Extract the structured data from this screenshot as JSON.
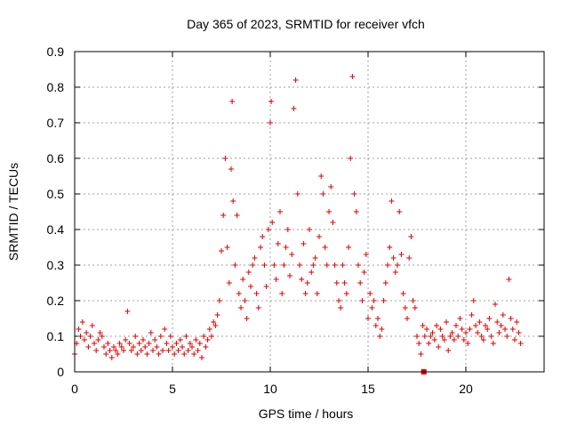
{
  "chart_data": {
    "type": "scatter",
    "title": "Day 365 of 2023, SRMTID for receiver vfch",
    "xlabel": "GPS time / hours",
    "ylabel": "SRMTID / TECUs",
    "xlim": [
      0,
      24
    ],
    "ylim": [
      0,
      0.9
    ],
    "xticks": [
      0,
      5,
      10,
      15,
      20
    ],
    "xtick_labels": [
      "0",
      "5",
      "10",
      "15",
      "20"
    ],
    "yticks": [
      0,
      0.1,
      0.2,
      0.3,
      0.4,
      0.5,
      0.6,
      0.7,
      0.8,
      0.9
    ],
    "ytick_labels": [
      "0",
      "0.1",
      "0.2",
      "0.3",
      "0.4",
      "0.5",
      "0.6",
      "0.7",
      "0.8",
      "0.9"
    ],
    "grid": true,
    "marker": "plus",
    "color": "#e00000",
    "special_marker": {
      "shape": "square",
      "x": 17.85,
      "y": 0.0
    },
    "series": [
      {
        "name": "SRMTID",
        "x": [
          0.0,
          0.1,
          0.2,
          0.3,
          0.4,
          0.5,
          0.6,
          0.7,
          0.8,
          0.9,
          1.0,
          1.1,
          1.2,
          1.3,
          1.4,
          1.5,
          1.6,
          1.7,
          1.8,
          1.9,
          2.0,
          2.1,
          2.2,
          2.3,
          2.4,
          2.5,
          2.6,
          2.7,
          2.8,
          2.9,
          3.0,
          3.1,
          3.2,
          3.3,
          3.4,
          3.5,
          3.6,
          3.7,
          3.8,
          3.9,
          4.0,
          4.1,
          4.2,
          4.3,
          4.4,
          4.5,
          4.6,
          4.7,
          4.8,
          4.9,
          5.0,
          5.1,
          5.2,
          5.3,
          5.4,
          5.5,
          5.6,
          5.7,
          5.8,
          5.9,
          6.0,
          6.1,
          6.2,
          6.3,
          6.4,
          6.5,
          6.6,
          6.7,
          6.8,
          6.9,
          7.0,
          7.1,
          7.2,
          7.3,
          7.4,
          7.5,
          7.6,
          7.7,
          7.8,
          7.9,
          8.0,
          8.05,
          8.1,
          8.2,
          8.3,
          8.4,
          8.5,
          8.6,
          8.7,
          8.8,
          8.9,
          9.0,
          9.1,
          9.2,
          9.3,
          9.4,
          9.5,
          9.6,
          9.7,
          9.8,
          9.9,
          10.0,
          10.05,
          10.1,
          10.2,
          10.3,
          10.4,
          10.5,
          10.6,
          10.7,
          10.8,
          10.9,
          11.0,
          11.1,
          11.2,
          11.3,
          11.4,
          11.5,
          11.6,
          11.7,
          11.8,
          11.9,
          12.0,
          12.1,
          12.2,
          12.3,
          12.4,
          12.5,
          12.6,
          12.7,
          12.8,
          12.9,
          13.0,
          13.1,
          13.2,
          13.3,
          13.4,
          13.5,
          13.6,
          13.7,
          13.8,
          13.9,
          14.0,
          14.1,
          14.2,
          14.3,
          14.4,
          14.5,
          14.6,
          14.7,
          14.8,
          14.9,
          15.0,
          15.1,
          15.2,
          15.3,
          15.4,
          15.5,
          15.6,
          15.7,
          15.8,
          15.9,
          16.0,
          16.1,
          16.2,
          16.3,
          16.4,
          16.5,
          16.6,
          16.7,
          16.8,
          16.9,
          17.0,
          17.1,
          17.2,
          17.3,
          17.4,
          17.5,
          17.6,
          17.7,
          17.8,
          17.9,
          18.0,
          18.1,
          18.2,
          18.3,
          18.4,
          18.5,
          18.6,
          18.7,
          18.8,
          18.9,
          19.0,
          19.1,
          19.2,
          19.3,
          19.4,
          19.5,
          19.6,
          19.7,
          19.8,
          19.9,
          20.0,
          20.1,
          20.2,
          20.3,
          20.4,
          20.5,
          20.6,
          20.7,
          20.8,
          20.9,
          21.0,
          21.1,
          21.2,
          21.3,
          21.4,
          21.5,
          21.6,
          21.7,
          21.8,
          21.9,
          22.0,
          22.1,
          22.2,
          22.3,
          22.4,
          22.5,
          22.6,
          22.7,
          22.8
        ],
        "y": [
          0.05,
          0.08,
          0.12,
          0.1,
          0.14,
          0.09,
          0.11,
          0.07,
          0.1,
          0.13,
          0.08,
          0.06,
          0.09,
          0.11,
          0.1,
          0.07,
          0.05,
          0.08,
          0.06,
          0.04,
          0.07,
          0.06,
          0.05,
          0.08,
          0.07,
          0.06,
          0.09,
          0.17,
          0.08,
          0.06,
          0.07,
          0.1,
          0.05,
          0.08,
          0.06,
          0.09,
          0.07,
          0.05,
          0.08,
          0.11,
          0.06,
          0.09,
          0.07,
          0.05,
          0.1,
          0.06,
          0.12,
          0.08,
          0.06,
          0.1,
          0.07,
          0.05,
          0.08,
          0.06,
          0.09,
          0.07,
          0.05,
          0.1,
          0.06,
          0.08,
          0.07,
          0.05,
          0.09,
          0.06,
          0.08,
          0.04,
          0.1,
          0.07,
          0.09,
          0.12,
          0.1,
          0.14,
          0.13,
          0.16,
          0.2,
          0.34,
          0.44,
          0.6,
          0.35,
          0.25,
          0.57,
          0.76,
          0.48,
          0.3,
          0.44,
          0.22,
          0.18,
          0.26,
          0.2,
          0.15,
          0.28,
          0.24,
          0.3,
          0.32,
          0.22,
          0.18,
          0.35,
          0.38,
          0.3,
          0.24,
          0.4,
          0.7,
          0.76,
          0.42,
          0.3,
          0.26,
          0.36,
          0.45,
          0.22,
          0.3,
          0.35,
          0.4,
          0.27,
          0.33,
          0.74,
          0.82,
          0.5,
          0.3,
          0.26,
          0.36,
          0.22,
          0.25,
          0.4,
          0.28,
          0.3,
          0.32,
          0.22,
          0.38,
          0.55,
          0.5,
          0.35,
          0.3,
          0.45,
          0.52,
          0.42,
          0.3,
          0.25,
          0.2,
          0.18,
          0.3,
          0.25,
          0.22,
          0.35,
          0.6,
          0.83,
          0.5,
          0.45,
          0.3,
          0.25,
          0.2,
          0.28,
          0.33,
          0.15,
          0.22,
          0.18,
          0.2,
          0.13,
          0.15,
          0.1,
          0.12,
          0.2,
          0.25,
          0.3,
          0.35,
          0.48,
          0.32,
          0.28,
          0.3,
          0.45,
          0.33,
          0.22,
          0.18,
          0.15,
          0.32,
          0.38,
          0.2,
          0.18,
          0.1,
          0.08,
          0.05,
          0.13,
          0.1,
          0.12,
          0.08,
          0.1,
          0.11,
          0.09,
          0.13,
          0.07,
          0.12,
          0.1,
          0.09,
          0.14,
          0.06,
          0.1,
          0.11,
          0.09,
          0.13,
          0.1,
          0.15,
          0.12,
          0.09,
          0.11,
          0.08,
          0.12,
          0.16,
          0.2,
          0.13,
          0.11,
          0.14,
          0.1,
          0.09,
          0.13,
          0.12,
          0.15,
          0.1,
          0.08,
          0.19,
          0.14,
          0.11,
          0.13,
          0.16,
          0.12,
          0.1,
          0.26,
          0.15,
          0.12,
          0.09,
          0.14,
          0.11,
          0.08
        ]
      }
    ]
  }
}
